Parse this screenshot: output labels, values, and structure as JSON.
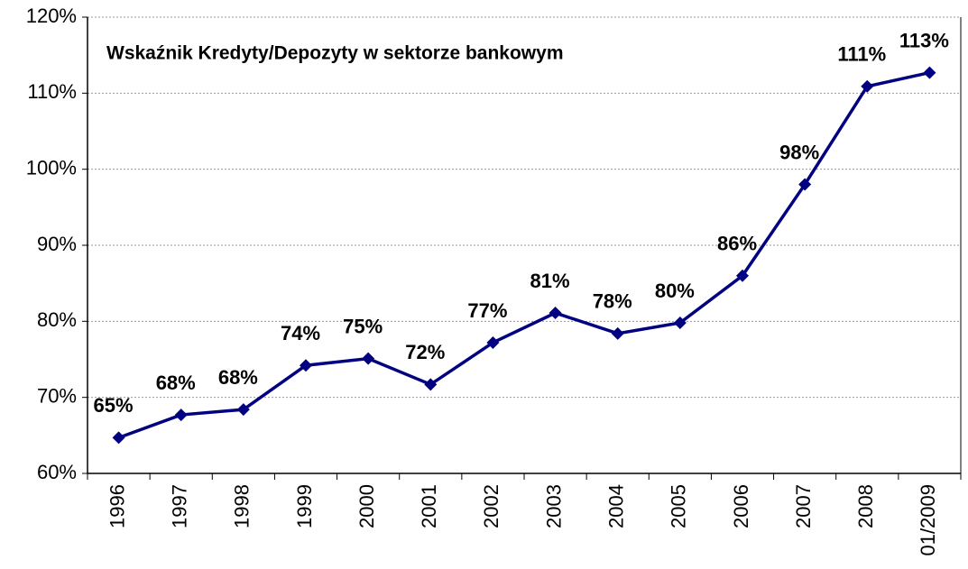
{
  "chart_data": {
    "type": "line",
    "title": "Wskaźnik Kredyty/Depozyty w sektorze bankowym",
    "categories": [
      "1996",
      "1997",
      "1998",
      "1999",
      "2000",
      "2001",
      "2002",
      "2003",
      "2004",
      "2005",
      "2006",
      "2007",
      "2008",
      "01/2009"
    ],
    "series": [
      {
        "name": "Wskaźnik Kredyty/Depozyty",
        "color": "#000080",
        "values": [
          64.7,
          67.7,
          68.4,
          74.2,
          75.1,
          71.7,
          77.2,
          81.1,
          78.4,
          79.8,
          86.0,
          98.0,
          110.9,
          112.7
        ],
        "value_labels": [
          "65%",
          "68%",
          "68%",
          "74%",
          "75%",
          "72%",
          "77%",
          "81%",
          "78%",
          "80%",
          "86%",
          "98%",
          "111%",
          "113%"
        ]
      }
    ],
    "ylim": [
      60,
      120
    ],
    "yticks": [
      {
        "value": 60,
        "label": "60%"
      },
      {
        "value": 70,
        "label": "70%"
      },
      {
        "value": 80,
        "label": "80%"
      },
      {
        "value": 90,
        "label": "90%"
      },
      {
        "value": 100,
        "label": "100%"
      },
      {
        "value": 110,
        "label": "110%"
      },
      {
        "value": 120,
        "label": "120%"
      }
    ],
    "grid": true
  }
}
